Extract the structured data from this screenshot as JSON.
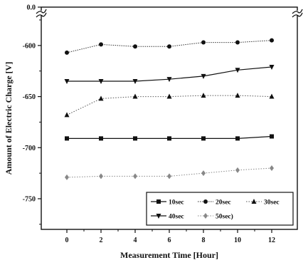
{
  "chart_data": {
    "type": "line",
    "xlabel": "Measurement Time [Hour]",
    "ylabel": "Amount of Electric Charge [V]",
    "x": [
      0,
      2,
      4,
      6,
      8,
      10,
      12
    ],
    "x_ticks": [
      "0",
      "2",
      "4",
      "6",
      "8",
      "10",
      "12"
    ],
    "xlim": [
      -1.5,
      13.5
    ],
    "ylim": [
      -780,
      -575
    ],
    "y_top_break_label": "0.0",
    "y_ticks": [
      {
        "value": -600,
        "label": "-600"
      },
      {
        "value": -650,
        "label": "-650"
      },
      {
        "value": -700,
        "label": "-700"
      },
      {
        "value": -750,
        "label": "-750"
      }
    ],
    "axis_break": true,
    "grid": false,
    "legend_position": "bottom-right",
    "series": [
      {
        "name": "10sec",
        "marker": "square",
        "values": [
          -691,
          -691,
          -691,
          -691,
          -691,
          -691,
          -689
        ]
      },
      {
        "name": "20sec",
        "marker": "circle",
        "values": [
          -607,
          -599,
          -601,
          -601,
          -597,
          -597,
          -595
        ]
      },
      {
        "name": "30sec",
        "marker": "triangle-up",
        "values": [
          -668,
          -652,
          -650,
          -650,
          -649,
          -649,
          -650
        ]
      },
      {
        "name": "40sec",
        "marker": "triangle-down",
        "values": [
          -635,
          -635,
          -635,
          -633,
          -630,
          -624,
          -621
        ]
      },
      {
        "name": "50sec)",
        "marker": "diamond",
        "values": [
          -729,
          -728,
          -728,
          -728,
          -725,
          -722,
          -720
        ]
      }
    ]
  }
}
